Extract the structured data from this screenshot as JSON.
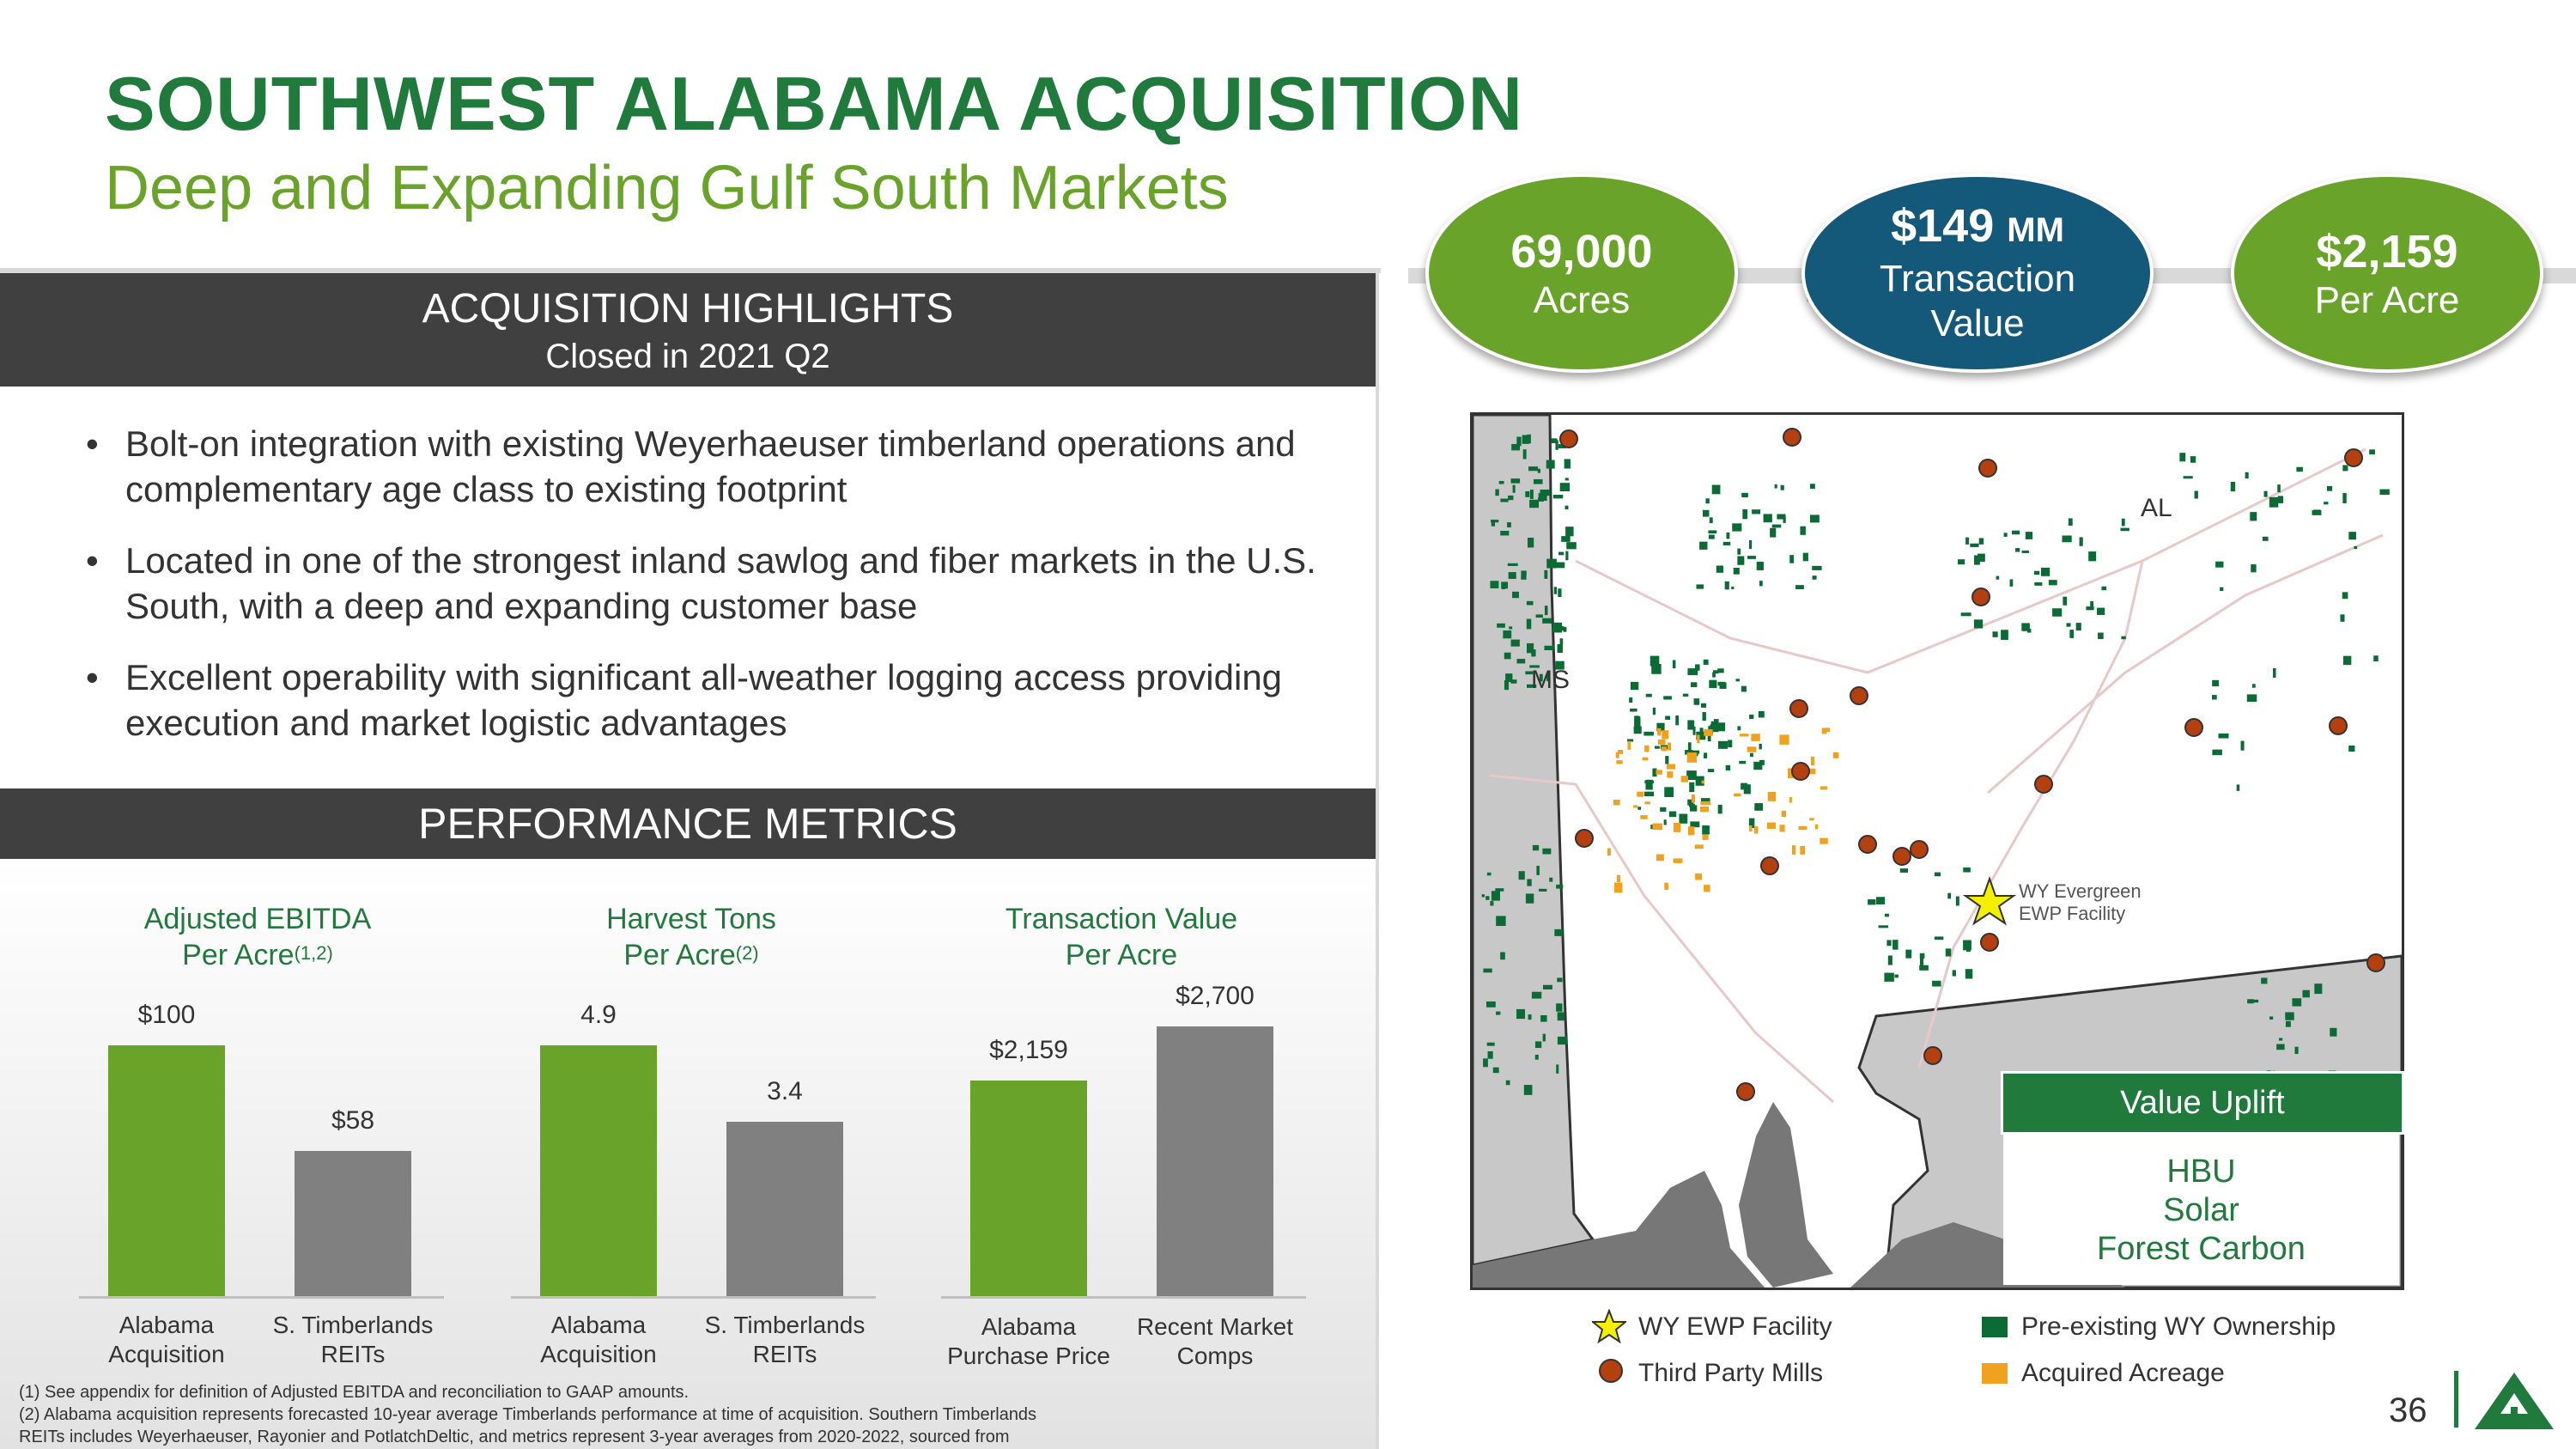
{
  "header": {
    "title": "SOUTHWEST ALABAMA ACQUISITION",
    "subtitle": "Deep and Expanding Gulf South Markets"
  },
  "metrics": {
    "acres": {
      "value": "69,000",
      "label": "Acres",
      "color": "#6aa32a"
    },
    "transaction": {
      "value": "$149",
      "unit": "MM",
      "label1": "Transaction",
      "label2": "Value",
      "color": "#14587a"
    },
    "per_acre": {
      "value": "$2,159",
      "label": "Per Acre",
      "color": "#6aa32a"
    }
  },
  "highlights": {
    "heading": "ACQUISITION HIGHLIGHTS",
    "subheading": "Closed in 2021 Q2",
    "bullets": [
      "Bolt-on integration with existing Weyerhaeuser timberland operations and complementary age class to existing footprint",
      "Located in one of the strongest inland sawlog and fiber markets in the U.S. South, with a deep and expanding customer base",
      "Excellent operability with significant all-weather logging access providing execution and market logistic advantages"
    ]
  },
  "performance": {
    "heading": "PERFORMANCE METRICS"
  },
  "chart_data": [
    {
      "type": "bar",
      "title_line1": "Adjusted EBITDA",
      "title_line2": "Per Acre",
      "title_sup": "(1,2)",
      "categories": [
        "Alabama Acquisition",
        "S. Timberlands REITs"
      ],
      "cat_line1": [
        "Alabama",
        "S. Timberlands"
      ],
      "cat_line2": [
        "Acquisition",
        "REITs"
      ],
      "values": [
        100,
        58
      ],
      "value_labels": [
        "$100",
        "$58"
      ],
      "colors": [
        "#6aa32a",
        "#808080"
      ]
    },
    {
      "type": "bar",
      "title_line1": "Harvest Tons",
      "title_line2": "Per Acre",
      "title_sup": "(2)",
      "categories": [
        "Alabama Acquisition",
        "S. Timberlands REITs"
      ],
      "cat_line1": [
        "Alabama",
        "S. Timberlands"
      ],
      "cat_line2": [
        "Acquisition",
        "REITs"
      ],
      "values": [
        4.9,
        3.4
      ],
      "value_labels": [
        "4.9",
        "3.4"
      ],
      "colors": [
        "#6aa32a",
        "#808080"
      ]
    },
    {
      "type": "bar",
      "title_line1": "Transaction Value",
      "title_line2": "Per Acre",
      "title_sup": "",
      "categories": [
        "Alabama Purchase Price",
        "Recent Market Comps"
      ],
      "cat_line1": [
        "Alabama",
        "Recent Market"
      ],
      "cat_line2": [
        "Purchase Price",
        "Comps"
      ],
      "values": [
        2159,
        2700
      ],
      "value_labels": [
        "$2,159",
        "$2,700"
      ],
      "colors": [
        "#6aa32a",
        "#808080"
      ]
    }
  ],
  "footnotes": {
    "f1": "(1)  See appendix for definition of Adjusted EBITDA and reconciliation to GAAP amounts.",
    "f2": "(2)  Alabama acquisition represents forecasted 10-year average Timberlands performance at time of acquisition. Southern Timberlands",
    "f3": "REITs includes Weyerhaeuser, Rayonier and PotlatchDeltic, and metrics represent 3-year averages from 2020-2022, sourced from"
  },
  "map": {
    "state_ms": "MS",
    "state_al": "AL",
    "facility_label1": "WY Evergreen",
    "facility_label2": "EWP Facility",
    "value_uplift": {
      "heading": "Value Uplift",
      "items": [
        "HBU",
        "Solar",
        "Forest Carbon"
      ]
    }
  },
  "legend": {
    "ewp": "WY EWP Facility",
    "mills": "Third Party Mills",
    "preexisting": "Pre-existing WY Ownership",
    "acquired": "Acquired Acreage",
    "colors": {
      "preexisting": "#0b6b35",
      "acquired": "#f0a21e",
      "mill": "#b5400f",
      "star": "#f4f000"
    }
  },
  "page_number": "36"
}
